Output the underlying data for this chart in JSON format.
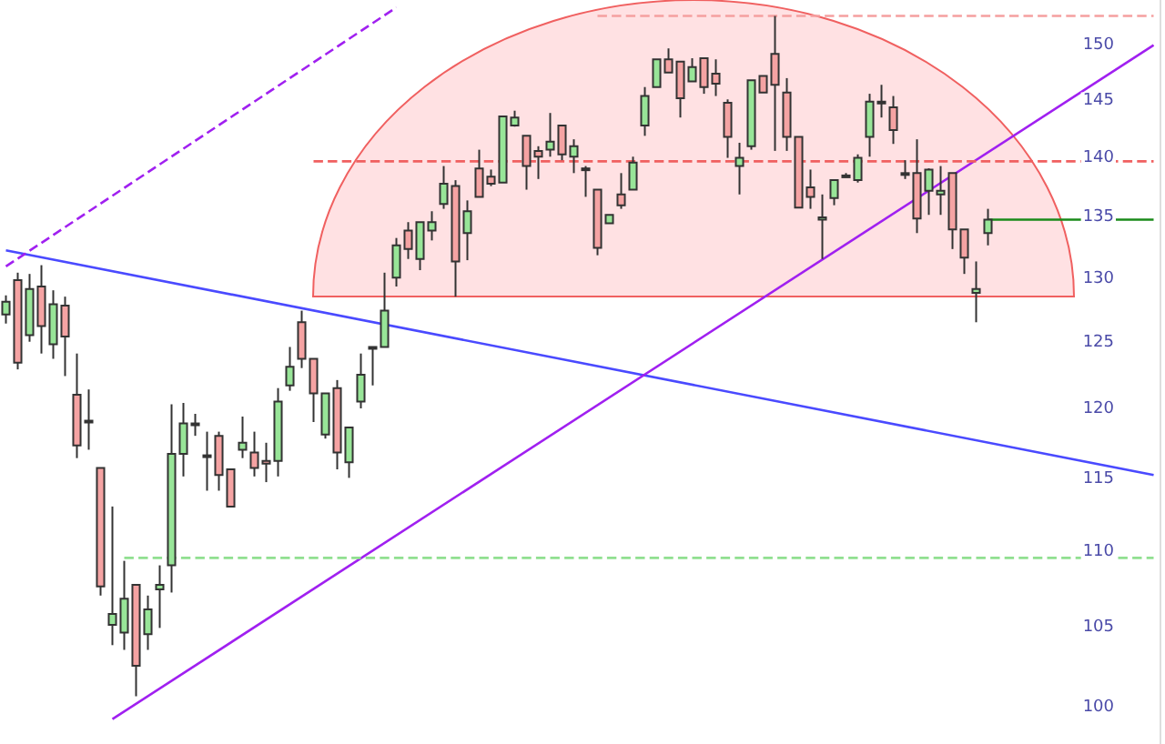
{
  "chart_data": {
    "type": "candlestick",
    "log": true,
    "ylim": [
      97.8,
      154.2
    ],
    "yticks": [
      100,
      105,
      110,
      115,
      120,
      125,
      130,
      135,
      140,
      145,
      150
    ],
    "categories": [
      null,
      null,
      null,
      null,
      null,
      null,
      null,
      null,
      null,
      null,
      null,
      null,
      null,
      null,
      null,
      null,
      null,
      null,
      null,
      null,
      null,
      null,
      null,
      null,
      null,
      null,
      null,
      null,
      null,
      null,
      null,
      null,
      null,
      null,
      null,
      null,
      null,
      null,
      null,
      null,
      null,
      null,
      null,
      null,
      null,
      null,
      null,
      null,
      null,
      null,
      null,
      null,
      null,
      null,
      null,
      null,
      null,
      null,
      null,
      null,
      null,
      null,
      null,
      null,
      null,
      null,
      null,
      null,
      null,
      null,
      null,
      null,
      null,
      null,
      null,
      null,
      null,
      null,
      null,
      null,
      null,
      null,
      null,
      null,
      null,
      null,
      null,
      null,
      null,
      null,
      null,
      null,
      null,
      null,
      null,
      null,
      null,
      null
    ],
    "ohlc": [
      [
        127.2,
        128.7,
        126.5,
        128.2
      ],
      [
        129.9,
        130.5,
        123.0,
        123.5
      ],
      [
        125.6,
        130.4,
        125.1,
        129.2
      ],
      [
        129.4,
        131.1,
        124.2,
        126.3
      ],
      [
        124.9,
        129.1,
        123.8,
        128.0
      ],
      [
        127.9,
        128.6,
        122.5,
        125.5
      ],
      [
        121.1,
        124.2,
        116.5,
        117.4
      ],
      [
        119.2,
        121.5,
        117.1,
        119.2
      ],
      [
        115.8,
        115.8,
        107.1,
        107.7
      ],
      [
        105.2,
        113.1,
        103.9,
        105.9
      ],
      [
        104.7,
        109.4,
        103.6,
        106.9
      ],
      [
        107.8,
        107.8,
        100.7,
        102.6
      ],
      [
        104.6,
        107.1,
        103.6,
        106.2
      ],
      [
        107.5,
        109.1,
        105.0,
        107.8
      ],
      [
        109.1,
        120.4,
        107.3,
        116.8
      ],
      [
        116.8,
        120.5,
        115.2,
        119.0
      ],
      [
        119.0,
        119.7,
        118.1,
        119.0
      ],
      [
        116.7,
        118.4,
        114.2,
        116.7
      ],
      [
        118.1,
        118.4,
        114.2,
        115.3
      ],
      [
        115.7,
        115.7,
        113.1,
        113.1
      ],
      [
        117.1,
        119.5,
        116.5,
        117.6
      ],
      [
        116.9,
        118.4,
        115.2,
        115.8
      ],
      [
        116.3,
        117.6,
        114.8,
        116.1
      ],
      [
        116.3,
        121.6,
        115.2,
        120.6
      ],
      [
        121.8,
        124.7,
        121.4,
        123.2
      ],
      [
        126.6,
        127.5,
        123.1,
        123.8
      ],
      [
        123.8,
        123.8,
        119.1,
        121.2
      ],
      [
        118.2,
        121.2,
        117.9,
        121.2
      ],
      [
        121.6,
        122.2,
        115.7,
        116.9
      ],
      [
        116.2,
        118.7,
        115.1,
        118.7
      ],
      [
        120.6,
        124.2,
        120.1,
        122.6
      ],
      [
        124.7,
        124.7,
        121.8,
        124.7
      ],
      [
        124.7,
        130.5,
        124.7,
        127.5
      ],
      [
        130.1,
        133.3,
        129.4,
        132.7
      ],
      [
        133.9,
        134.6,
        131.6,
        132.4
      ],
      [
        131.6,
        134.6,
        130.7,
        134.6
      ],
      [
        133.9,
        135.5,
        133.1,
        134.6
      ],
      [
        136.1,
        139.3,
        135.7,
        137.8
      ],
      [
        137.6,
        138.1,
        128.6,
        131.4
      ],
      [
        133.7,
        136.4,
        131.5,
        135.5
      ],
      [
        139.1,
        140.7,
        136.7,
        136.7
      ],
      [
        138.4,
        139.0,
        137.6,
        137.8
      ],
      [
        137.9,
        143.6,
        137.9,
        143.6
      ],
      [
        142.8,
        144.1,
        142.7,
        143.5
      ],
      [
        141.9,
        141.9,
        137.3,
        139.3
      ],
      [
        140.6,
        141.0,
        138.2,
        140.1
      ],
      [
        140.7,
        143.9,
        140.1,
        141.4
      ],
      [
        142.8,
        142.8,
        139.8,
        140.3
      ],
      [
        140.1,
        141.6,
        138.7,
        141.0
      ],
      [
        139.1,
        139.3,
        136.7,
        139.1
      ],
      [
        137.3,
        137.3,
        131.9,
        132.5
      ],
      [
        134.5,
        135.2,
        134.5,
        135.2
      ],
      [
        136.9,
        138.7,
        135.7,
        136.0
      ],
      [
        137.3,
        140.1,
        137.3,
        139.6
      ],
      [
        142.8,
        146.2,
        141.9,
        145.4
      ],
      [
        146.2,
        148.7,
        146.2,
        148.7
      ],
      [
        148.7,
        149.7,
        147.5,
        147.5
      ],
      [
        148.5,
        148.5,
        143.5,
        145.2
      ],
      [
        146.7,
        148.8,
        146.7,
        148.0
      ],
      [
        148.8,
        148.8,
        145.6,
        146.2
      ],
      [
        147.4,
        148.7,
        145.4,
        146.5
      ],
      [
        144.8,
        145.1,
        140.0,
        141.8
      ],
      [
        139.3,
        141.3,
        136.9,
        140.0
      ],
      [
        141.0,
        146.8,
        140.7,
        146.8
      ],
      [
        147.2,
        147.2,
        145.7,
        145.7
      ],
      [
        149.2,
        152.7,
        140.6,
        146.4
      ],
      [
        145.7,
        147.0,
        140.6,
        141.8
      ],
      [
        141.8,
        141.8,
        135.8,
        135.8
      ],
      [
        137.5,
        139.0,
        135.7,
        136.7
      ],
      [
        134.8,
        136.9,
        131.6,
        135.0
      ],
      [
        136.6,
        138.1,
        136.0,
        138.1
      ],
      [
        138.5,
        138.7,
        138.4,
        138.5
      ],
      [
        138.1,
        140.3,
        137.9,
        140.0
      ],
      [
        141.8,
        145.6,
        140.1,
        144.9
      ],
      [
        144.9,
        146.4,
        143.5,
        144.9
      ],
      [
        144.4,
        145.4,
        141.2,
        142.4
      ],
      [
        138.7,
        139.8,
        138.2,
        138.7
      ],
      [
        138.7,
        141.6,
        133.7,
        134.9
      ],
      [
        137.2,
        139.1,
        135.2,
        139.0
      ],
      [
        136.9,
        139.3,
        135.2,
        137.2
      ],
      [
        138.7,
        138.7,
        132.4,
        134.0
      ],
      [
        134.0,
        134.0,
        130.4,
        131.7
      ],
      [
        128.9,
        131.4,
        126.6,
        129.2
      ],
      [
        133.7,
        135.7,
        132.7,
        134.8
      ],
      null,
      null,
      null,
      null,
      null,
      null,
      null,
      null,
      null,
      null,
      null,
      null,
      null,
      null
    ],
    "colors": [
      "#98e598",
      "#f5a3a3",
      "#98e598",
      "#f5a3a3",
      "#98e598",
      "#f5a3a3",
      "#f5a3a3",
      "#f5a3a3",
      "#f5a3a3",
      "#98e598",
      "#98e598",
      "#f5a3a3",
      "#98e598",
      "#98e598",
      "#98e598",
      "#98e598",
      "#98e598",
      "#f5a3a3",
      "#f5a3a3",
      "#f5a3a3",
      "#98e598",
      "#f5a3a3",
      "#f5a3a3",
      "#98e598",
      "#98e598",
      "#f5a3a3",
      "#f5a3a3",
      "#98e598",
      "#f5a3a3",
      "#98e598",
      "#98e598",
      "#98e598",
      "#98e598",
      "#98e598",
      "#f5a3a3",
      "#98e598",
      "#98e598",
      "#98e598",
      "#f5a3a3",
      "#98e598",
      "#f5a3a3",
      "#f5a3a3",
      "#98e598",
      "#98e598",
      "#f5a3a3",
      "#f5a3a3",
      "#98e598",
      "#f5a3a3",
      "#98e598",
      "#f5a3a3",
      "#f5a3a3",
      "#98e598",
      "#f5a3a3",
      "#98e598",
      "#98e598",
      "#98e598",
      "#f5a3a3",
      "#f5a3a3",
      "#98e598",
      "#f5a3a3",
      "#f5a3a3",
      "#f5a3a3",
      "#98e598",
      "#98e598",
      "#f5a3a3",
      "#f5a3a3",
      "#f5a3a3",
      "#f5a3a3",
      "#f5a3a3",
      "#98e598",
      "#98e598",
      "#f5a3a3",
      "#98e598",
      "#98e598",
      "#f5a3a3",
      "#f5a3a3",
      "#f5a3a3",
      "#f5a3a3",
      "#98e598",
      "#98e598",
      "#f5a3a3",
      "#f5a3a3",
      "#98e598",
      "#98e598",
      null,
      null,
      null,
      null,
      null,
      null,
      null,
      null,
      null,
      null,
      null,
      null,
      null,
      null
    ],
    "series": [
      {
        "type": "line",
        "color": "#4a4aff",
        "line_style": "solid",
        "values": [
          132.3,
          null,
          null,
          null,
          null,
          null,
          null,
          null,
          null,
          null,
          null,
          null,
          null,
          null,
          null,
          null,
          null,
          null,
          null,
          null,
          null,
          null,
          null,
          null,
          null,
          null,
          null,
          null,
          null,
          null,
          null,
          null,
          null,
          null,
          null,
          null,
          null,
          null,
          null,
          null,
          null,
          null,
          null,
          null,
          null,
          null,
          null,
          null,
          null,
          null,
          null,
          null,
          null,
          null,
          null,
          null,
          null,
          null,
          null,
          null,
          null,
          null,
          null,
          null,
          null,
          null,
          null,
          null,
          null,
          null,
          null,
          null,
          null,
          null,
          null,
          null,
          null,
          null,
          null,
          null,
          null,
          null,
          null,
          null,
          null,
          null,
          null,
          null,
          null,
          null,
          null,
          null,
          null,
          null,
          null,
          null,
          null,
          115.3
        ]
      },
      {
        "type": "line",
        "color": "#a020f0",
        "line_style": "solid",
        "values": [
          null,
          null,
          null,
          null,
          null,
          null,
          null,
          null,
          null,
          99.3,
          null,
          null,
          null,
          null,
          null,
          null,
          null,
          null,
          null,
          null,
          null,
          null,
          null,
          null,
          null,
          null,
          null,
          null,
          null,
          null,
          null,
          null,
          null,
          null,
          null,
          null,
          null,
          null,
          null,
          null,
          null,
          null,
          null,
          null,
          null,
          null,
          null,
          null,
          null,
          null,
          null,
          null,
          null,
          null,
          null,
          null,
          null,
          null,
          null,
          null,
          null,
          null,
          null,
          null,
          null,
          null,
          null,
          null,
          null,
          null,
          null,
          null,
          null,
          null,
          null,
          null,
          null,
          null,
          null,
          null,
          null,
          null,
          null,
          null,
          null,
          null,
          null,
          null,
          null,
          null,
          null,
          null,
          null,
          null,
          null,
          null,
          null,
          150.0
        ]
      },
      {
        "type": "line",
        "color": "#a020f0",
        "line_style": "dashed",
        "values": [
          131.0,
          null,
          null,
          null,
          null,
          null,
          null,
          null,
          null,
          null,
          null,
          null,
          null,
          null,
          null,
          null,
          null,
          null,
          null,
          null,
          null,
          null,
          null,
          null,
          null,
          null,
          null,
          null,
          null,
          null,
          null,
          null,
          null,
          153.5,
          null,
          null,
          null,
          null,
          null,
          null,
          null,
          null,
          null,
          null,
          null,
          null,
          null,
          null,
          null,
          null,
          null,
          null,
          null,
          null,
          null,
          null,
          null,
          null,
          null,
          null,
          null,
          null,
          null,
          null,
          null,
          null,
          null,
          null,
          null,
          null,
          null,
          null,
          null,
          null,
          null,
          null,
          null,
          null,
          null,
          null,
          null,
          null,
          null,
          null,
          null,
          null,
          null,
          null,
          null,
          null,
          null,
          null,
          null,
          null,
          null,
          null,
          null,
          null
        ]
      },
      {
        "type": "line",
        "color": "#90e090",
        "line_style": "dashed",
        "values": [
          null,
          null,
          null,
          null,
          null,
          null,
          null,
          null,
          null,
          null,
          109.6,
          null,
          null,
          null,
          null,
          null,
          null,
          null,
          null,
          null,
          null,
          null,
          null,
          null,
          null,
          null,
          null,
          null,
          null,
          null,
          null,
          null,
          null,
          null,
          null,
          null,
          null,
          null,
          null,
          null,
          null,
          null,
          null,
          null,
          null,
          null,
          null,
          null,
          null,
          null,
          null,
          null,
          null,
          null,
          null,
          null,
          null,
          null,
          null,
          null,
          null,
          null,
          null,
          null,
          null,
          null,
          null,
          null,
          null,
          null,
          null,
          null,
          null,
          null,
          null,
          null,
          null,
          null,
          null,
          null,
          null,
          null,
          null,
          null,
          null,
          null,
          null,
          null,
          null,
          null,
          null,
          null,
          null,
          null,
          null,
          null,
          null,
          109.6
        ]
      },
      {
        "type": "line",
        "color": "#f06060",
        "line_style": "dashed",
        "values": [
          null,
          null,
          null,
          null,
          null,
          null,
          null,
          null,
          null,
          null,
          null,
          null,
          null,
          null,
          null,
          null,
          null,
          null,
          null,
          null,
          null,
          null,
          null,
          null,
          null,
          null,
          139.7,
          null,
          null,
          null,
          null,
          null,
          null,
          null,
          null,
          null,
          null,
          null,
          null,
          null,
          null,
          null,
          null,
          null,
          null,
          null,
          null,
          null,
          null,
          null,
          null,
          null,
          null,
          null,
          null,
          null,
          null,
          null,
          null,
          null,
          null,
          null,
          null,
          null,
          null,
          null,
          null,
          null,
          null,
          null,
          null,
          null,
          null,
          null,
          null,
          null,
          null,
          null,
          null,
          null,
          null,
          null,
          null,
          null,
          null,
          null,
          null,
          null,
          null,
          null,
          null,
          null,
          null,
          null,
          null,
          null,
          null,
          139.7
        ]
      },
      {
        "type": "line",
        "color": "#f5a0a0",
        "line_style": "dashed",
        "values": [
          null,
          null,
          null,
          null,
          null,
          null,
          null,
          null,
          null,
          null,
          null,
          null,
          null,
          null,
          null,
          null,
          null,
          null,
          null,
          null,
          null,
          null,
          null,
          null,
          null,
          null,
          null,
          null,
          null,
          null,
          null,
          null,
          null,
          null,
          null,
          null,
          null,
          null,
          null,
          null,
          null,
          null,
          null,
          null,
          null,
          null,
          null,
          null,
          null,
          null,
          152.7,
          null,
          null,
          null,
          null,
          null,
          null,
          null,
          null,
          null,
          null,
          null,
          null,
          null,
          null,
          null,
          null,
          null,
          null,
          null,
          null,
          null,
          null,
          null,
          null,
          null,
          null,
          null,
          null,
          null,
          null,
          null,
          null,
          null,
          null,
          null,
          null,
          null,
          null,
          null,
          null,
          null,
          null,
          null,
          null,
          null,
          null,
          152.7
        ]
      },
      {
        "type": "line",
        "color": "#1a8a1a",
        "line_style": "solid",
        "values": [
          null,
          null,
          null,
          null,
          null,
          null,
          null,
          null,
          null,
          null,
          null,
          null,
          null,
          null,
          null,
          null,
          null,
          null,
          null,
          null,
          null,
          null,
          null,
          null,
          null,
          null,
          null,
          null,
          null,
          null,
          null,
          null,
          null,
          null,
          null,
          null,
          null,
          null,
          null,
          null,
          null,
          null,
          null,
          null,
          null,
          null,
          null,
          null,
          null,
          null,
          null,
          null,
          null,
          null,
          null,
          null,
          null,
          null,
          null,
          null,
          null,
          null,
          null,
          null,
          null,
          null,
          null,
          null,
          null,
          null,
          null,
          null,
          null,
          null,
          null,
          null,
          null,
          null,
          null,
          null,
          null,
          null,
          null,
          134.8,
          null,
          null,
          null,
          null,
          null,
          null,
          null,
          null,
          null,
          null,
          null,
          null,
          null,
          134.8
        ]
      }
    ]
  }
}
